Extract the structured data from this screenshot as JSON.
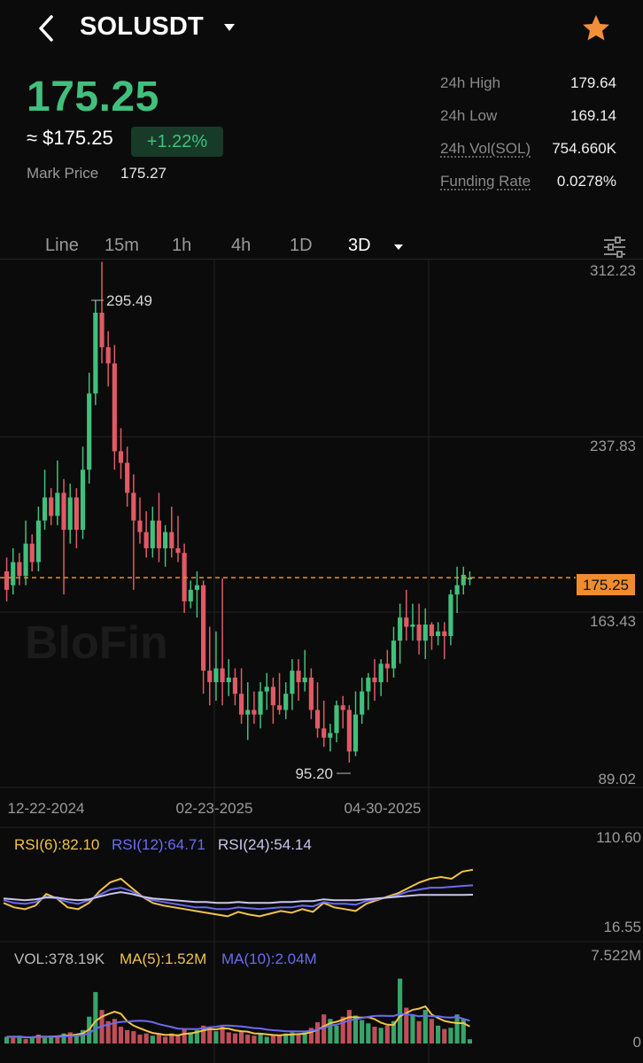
{
  "header": {
    "symbol": "SOLUSDT"
  },
  "ticker": {
    "last_price": "175.25",
    "usd_price": "≈ $175.25",
    "change": "+1.22%",
    "mark_price_label": "Mark Price",
    "mark_price": "175.27",
    "stats": [
      {
        "label": "24h High",
        "value": "179.64"
      },
      {
        "label": "24h Low",
        "value": "169.14"
      },
      {
        "label": "24h Vol(SOL)",
        "value": "754.660K"
      },
      {
        "label": "Funding Rate",
        "value": "0.0278%"
      }
    ]
  },
  "intervals": [
    "Line",
    "15m",
    "1h",
    "4h",
    "1D",
    "3D"
  ],
  "active_interval": "3D",
  "colors": {
    "up": "#41c07d",
    "down": "#e05a66",
    "price_line": "#f08c2e",
    "rsi6": "#f0c34a",
    "rsi12": "#6a6bf0",
    "rsi24": "#c9c6ec",
    "ma5": "#f0c34a",
    "ma10": "#6a6bf0"
  },
  "watermark": "BloFin",
  "chart_data": [
    {
      "type": "candlestick",
      "interval": "3D",
      "y_axis_labels": [
        "312.23",
        "237.83",
        "163.43",
        "89.02"
      ],
      "x_axis_labels": [
        "12-22-2024",
        "02-23-2025",
        "04-30-2025"
      ],
      "current_price_label": "175.25",
      "max_label": "295.49",
      "min_label": "95.20",
      "ylim": [
        89.02,
        312.23
      ],
      "candles": [
        [
          178,
          170,
          184,
          165
        ],
        [
          172,
          182,
          188,
          168
        ],
        [
          182,
          176,
          186,
          172
        ],
        [
          176,
          190,
          200,
          172
        ],
        [
          190,
          182,
          194,
          178
        ],
        [
          182,
          200,
          206,
          178
        ],
        [
          200,
          210,
          222,
          196
        ],
        [
          210,
          202,
          214,
          198
        ],
        [
          202,
          212,
          226,
          198
        ],
        [
          212,
          196,
          218,
          168
        ],
        [
          196,
          210,
          216,
          190
        ],
        [
          210,
          196,
          214,
          188
        ],
        [
          196,
          222,
          232,
          192
        ],
        [
          222,
          255,
          264,
          216
        ],
        [
          255,
          290,
          295.49,
          250
        ],
        [
          290,
          275,
          312,
          268
        ],
        [
          275,
          268,
          282,
          258
        ],
        [
          268,
          230,
          276,
          222
        ],
        [
          230,
          225,
          240,
          218
        ],
        [
          225,
          212,
          232,
          206
        ],
        [
          212,
          200,
          220,
          170
        ],
        [
          200,
          195,
          210,
          190
        ],
        [
          195,
          188,
          204,
          184
        ],
        [
          188,
          200,
          206,
          184
        ],
        [
          200,
          188,
          212,
          182
        ],
        [
          188,
          195,
          198,
          180
        ],
        [
          195,
          188,
          206,
          184
        ],
        [
          188,
          186,
          202,
          182
        ],
        [
          186,
          165,
          190,
          160
        ],
        [
          165,
          170,
          174,
          162
        ],
        [
          170,
          172,
          178,
          158
        ],
        [
          172,
          135,
          174,
          125
        ],
        [
          135,
          130,
          154,
          120
        ],
        [
          130,
          136,
          152,
          122
        ],
        [
          136,
          130,
          175,
          120
        ],
        [
          130,
          132,
          140,
          124
        ],
        [
          132,
          125,
          136,
          120
        ],
        [
          125,
          116,
          136,
          112
        ],
        [
          116,
          118,
          130,
          105
        ],
        [
          118,
          116,
          126,
          112
        ],
        [
          116,
          126,
          130,
          110
        ],
        [
          126,
          128,
          134,
          118
        ],
        [
          128,
          120,
          132,
          112
        ],
        [
          120,
          118,
          134,
          116
        ],
        [
          118,
          125,
          130,
          114
        ],
        [
          125,
          135,
          140,
          118
        ],
        [
          135,
          130,
          140,
          122
        ],
        [
          130,
          132,
          144,
          126
        ],
        [
          132,
          118,
          136,
          114
        ],
        [
          118,
          110,
          130,
          106
        ],
        [
          110,
          106,
          122,
          102
        ],
        [
          106,
          108,
          112,
          100
        ],
        [
          108,
          120,
          122,
          104
        ],
        [
          120,
          118,
          124,
          110
        ],
        [
          118,
          100,
          120,
          95.2
        ],
        [
          100,
          116,
          126,
          98
        ],
        [
          116,
          126,
          132,
          112
        ],
        [
          126,
          132,
          134,
          118
        ],
        [
          132,
          130,
          140,
          122
        ],
        [
          130,
          138,
          140,
          124
        ],
        [
          138,
          136,
          144,
          130
        ],
        [
          136,
          148,
          154,
          132
        ],
        [
          148,
          158,
          164,
          138
        ],
        [
          158,
          154,
          170,
          148
        ],
        [
          154,
          155,
          164,
          148
        ],
        [
          155,
          148,
          164,
          142
        ],
        [
          148,
          155,
          162,
          140
        ],
        [
          155,
          150,
          156,
          144
        ],
        [
          150,
          152,
          156,
          146
        ],
        [
          152,
          150,
          156,
          140
        ],
        [
          150,
          168,
          170,
          146
        ],
        [
          168,
          172,
          180,
          160
        ],
        [
          172,
          176.5,
          180,
          168
        ],
        [
          174.5,
          175.25,
          178,
          172
        ]
      ]
    },
    {
      "type": "line",
      "title": "RSI",
      "legend": [
        "RSI(6):82.10",
        "RSI(12):64.71",
        "RSI(24):54.14"
      ],
      "y_axis_labels": [
        "110.60",
        "16.55"
      ],
      "ylim": [
        16.55,
        110.6
      ],
      "series": [
        {
          "name": "RSI(6)",
          "values": [
            45,
            40,
            38,
            42,
            55,
            50,
            40,
            38,
            45,
            58,
            68,
            72,
            62,
            52,
            45,
            42,
            40,
            38,
            36,
            34,
            32,
            30,
            35,
            32,
            30,
            33,
            36,
            34,
            38,
            35,
            45,
            40,
            38,
            36,
            44,
            48,
            52,
            56,
            62,
            68,
            72,
            74,
            72,
            80,
            82.1
          ]
        },
        {
          "name": "RSI(12)",
          "values": [
            48,
            45,
            44,
            46,
            52,
            50,
            46,
            44,
            48,
            54,
            60,
            62,
            58,
            52,
            48,
            46,
            44,
            42,
            40,
            40,
            38,
            38,
            40,
            39,
            38,
            39,
            40,
            40,
            42,
            41,
            46,
            44,
            44,
            43,
            47,
            49,
            51,
            54,
            58,
            60,
            62,
            62,
            63,
            64,
            64.71
          ]
        },
        {
          "name": "RSI(24)",
          "values": [
            50,
            49,
            48,
            49,
            51,
            51,
            49,
            48,
            49,
            52,
            55,
            57,
            55,
            52,
            50,
            49,
            48,
            47,
            46,
            46,
            45,
            45,
            46,
            45,
            45,
            45,
            46,
            46,
            47,
            47,
            49,
            48,
            48,
            48,
            49,
            50,
            51,
            52,
            53,
            54,
            54,
            54,
            54,
            54,
            54.14
          ]
        }
      ]
    },
    {
      "type": "bar",
      "title": "Volume",
      "legend": [
        "VOL:378.19K",
        "MA(5):1.52M",
        "MA(10):2.04M"
      ],
      "y_axis_labels": [
        "7.522M",
        "0"
      ],
      "ylim": [
        0,
        7.522
      ],
      "values": [
        0.6,
        0.5,
        0.7,
        0.4,
        0.6,
        0.8,
        0.5,
        0.7,
        0.6,
        0.9,
        1.0,
        0.8,
        1.2,
        2.4,
        4.6,
        3.0,
        2.0,
        2.2,
        1.5,
        1.2,
        1.1,
        0.8,
        0.9,
        0.7,
        0.8,
        0.6,
        0.9,
        0.7,
        1.3,
        1.0,
        1.2,
        1.6,
        1.4,
        1.1,
        1.5,
        1.0,
        0.9,
        1.1,
        0.8,
        0.7,
        0.9,
        0.6,
        0.8,
        0.7,
        0.9,
        1.0,
        0.8,
        1.0,
        1.4,
        1.9,
        2.6,
        2.2,
        1.6,
        2.4,
        3.0,
        2.5,
        2.1,
        1.8,
        1.5,
        1.4,
        1.6,
        2.0,
        5.8,
        3.2,
        2.6,
        2.0,
        3.0,
        2.2,
        1.6,
        1.3,
        1.4,
        2.6,
        2.2,
        0.38
      ],
      "up": [
        1,
        0,
        1,
        0,
        1,
        0,
        1,
        1,
        0,
        1,
        0,
        1,
        1,
        1,
        1,
        0,
        0,
        0,
        0,
        0,
        0,
        0,
        0,
        1,
        0,
        0,
        0,
        0,
        0,
        1,
        1,
        0,
        0,
        1,
        0,
        0,
        0,
        0,
        0,
        0,
        1,
        1,
        0,
        0,
        1,
        1,
        0,
        1,
        0,
        0,
        0,
        1,
        1,
        0,
        0,
        1,
        1,
        1,
        0,
        1,
        0,
        1,
        1,
        0,
        1,
        0,
        1,
        0,
        1,
        0,
        1,
        1,
        1,
        1
      ],
      "series": [
        {
          "name": "MA(5)",
          "values": [
            0.6,
            0.6,
            0.6,
            0.55,
            0.56,
            0.6,
            0.6,
            0.62,
            0.64,
            0.7,
            0.74,
            0.8,
            0.9,
            1.26,
            2.0,
            2.4,
            2.64,
            2.84,
            2.66,
            1.98,
            1.6,
            1.36,
            1.14,
            0.94,
            0.86,
            0.76,
            0.78,
            0.74,
            0.86,
            0.9,
            1.02,
            1.16,
            1.3,
            1.26,
            1.36,
            1.32,
            1.18,
            1.1,
            1.06,
            0.9,
            0.88,
            0.82,
            0.76,
            0.74,
            0.78,
            0.8,
            0.84,
            0.88,
            1.02,
            1.22,
            1.54,
            1.82,
            1.94,
            2.14,
            2.36,
            2.34,
            2.32,
            2.36,
            2.18,
            1.86,
            1.68,
            1.66,
            2.44,
            2.72,
            3.02,
            3.12,
            3.32,
            2.6,
            2.28,
            2.02,
            1.9,
            1.82,
            1.82,
            1.52
          ]
        },
        {
          "name": "MA(10)",
          "values": [
            0.6,
            0.58,
            0.6,
            0.56,
            0.56,
            0.58,
            0.58,
            0.6,
            0.6,
            0.63,
            0.67,
            0.7,
            0.75,
            0.92,
            1.32,
            1.55,
            1.69,
            1.84,
            1.93,
            1.96,
            2.01,
            2.04,
            2.01,
            1.91,
            1.73,
            1.6,
            1.47,
            1.33,
            1.31,
            1.3,
            1.29,
            1.37,
            1.46,
            1.5,
            1.6,
            1.6,
            1.57,
            1.52,
            1.46,
            1.38,
            1.35,
            1.25,
            1.19,
            1.15,
            1.1,
            1.09,
            1.08,
            1.08,
            1.14,
            1.24,
            1.41,
            1.6,
            1.68,
            1.88,
            2.06,
            2.16,
            2.28,
            2.38,
            2.46,
            2.49,
            2.46,
            2.46,
            2.66,
            2.6,
            2.56,
            2.42,
            2.5,
            2.44,
            2.44,
            2.34,
            2.32,
            2.38,
            2.2,
            2.04
          ]
        }
      ]
    }
  ]
}
